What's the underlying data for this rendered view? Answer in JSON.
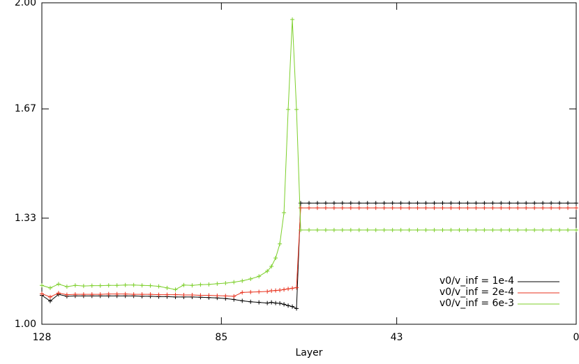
{
  "chart_data": {
    "type": "line",
    "x_label": "Layer",
    "x": [
      128,
      126,
      124,
      122,
      120,
      118,
      116,
      114,
      112,
      110,
      108,
      106,
      104,
      102,
      100,
      98,
      96,
      94,
      92,
      90,
      88,
      86,
      84,
      82,
      80,
      78,
      76,
      74,
      73,
      72,
      71,
      70,
      69,
      68,
      67,
      66,
      64,
      62,
      60,
      58,
      56,
      54,
      52,
      50,
      48,
      46,
      44,
      42,
      40,
      38,
      36,
      34,
      32,
      30,
      28,
      26,
      24,
      22,
      20,
      18,
      16,
      14,
      12,
      10,
      8,
      6,
      4,
      2,
      0
    ],
    "xlim": [
      128,
      0
    ],
    "xticks": [
      128,
      85,
      43,
      0
    ],
    "ylim": [
      1.0,
      2.0
    ],
    "yticks": [
      {
        "value": 1.0,
        "label": "1.00"
      },
      {
        "value": 1.33,
        "label": "1.33"
      },
      {
        "value": 1.67,
        "label": "1.67"
      },
      {
        "value": 2.0,
        "label": "2.00"
      }
    ],
    "series": [
      {
        "name": "v0/v_inf = 1e-4",
        "color": "#000000",
        "values": [
          1.09,
          1.072,
          1.093,
          1.087,
          1.088,
          1.088,
          1.088,
          1.088,
          1.088,
          1.088,
          1.088,
          1.088,
          1.087,
          1.087,
          1.086,
          1.086,
          1.085,
          1.085,
          1.085,
          1.084,
          1.083,
          1.082,
          1.08,
          1.077,
          1.073,
          1.07,
          1.068,
          1.066,
          1.068,
          1.066,
          1.065,
          1.062,
          1.058,
          1.055,
          1.049,
          1.377,
          1.377,
          1.377,
          1.377,
          1.377,
          1.377,
          1.377,
          1.377,
          1.377,
          1.377,
          1.377,
          1.377,
          1.377,
          1.377,
          1.377,
          1.377,
          1.377,
          1.377,
          1.377,
          1.377,
          1.377,
          1.377,
          1.377,
          1.377,
          1.377,
          1.377,
          1.377,
          1.377,
          1.377,
          1.377,
          1.377,
          1.377,
          1.377,
          1.377
        ]
      },
      {
        "name": "v0/v_inf = 2e-4",
        "color": "#e8321e",
        "values": [
          1.095,
          1.085,
          1.097,
          1.092,
          1.093,
          1.093,
          1.093,
          1.093,
          1.094,
          1.094,
          1.094,
          1.093,
          1.093,
          1.093,
          1.092,
          1.092,
          1.092,
          1.091,
          1.091,
          1.09,
          1.09,
          1.089,
          1.088,
          1.087,
          1.099,
          1.1,
          1.101,
          1.102,
          1.104,
          1.105,
          1.106,
          1.108,
          1.11,
          1.112,
          1.114,
          1.362,
          1.362,
          1.362,
          1.362,
          1.362,
          1.362,
          1.362,
          1.362,
          1.362,
          1.362,
          1.362,
          1.362,
          1.362,
          1.362,
          1.362,
          1.362,
          1.362,
          1.362,
          1.362,
          1.362,
          1.362,
          1.362,
          1.362,
          1.362,
          1.362,
          1.362,
          1.362,
          1.362,
          1.362,
          1.362,
          1.362,
          1.362,
          1.362,
          1.362
        ]
      },
      {
        "name": "v0/v_inf = 6e-3",
        "color": "#7ccf2a",
        "values": [
          1.121,
          1.113,
          1.125,
          1.117,
          1.121,
          1.119,
          1.12,
          1.12,
          1.121,
          1.121,
          1.122,
          1.122,
          1.121,
          1.12,
          1.118,
          1.113,
          1.108,
          1.122,
          1.121,
          1.123,
          1.124,
          1.126,
          1.128,
          1.131,
          1.135,
          1.141,
          1.149,
          1.165,
          1.18,
          1.206,
          1.25,
          1.347,
          1.668,
          1.948,
          1.668,
          1.293,
          1.293,
          1.293,
          1.293,
          1.293,
          1.293,
          1.293,
          1.293,
          1.293,
          1.293,
          1.293,
          1.293,
          1.293,
          1.293,
          1.293,
          1.293,
          1.293,
          1.293,
          1.293,
          1.293,
          1.293,
          1.293,
          1.293,
          1.293,
          1.293,
          1.293,
          1.293,
          1.293,
          1.293,
          1.293,
          1.293,
          1.293,
          1.293,
          1.293
        ]
      }
    ]
  }
}
